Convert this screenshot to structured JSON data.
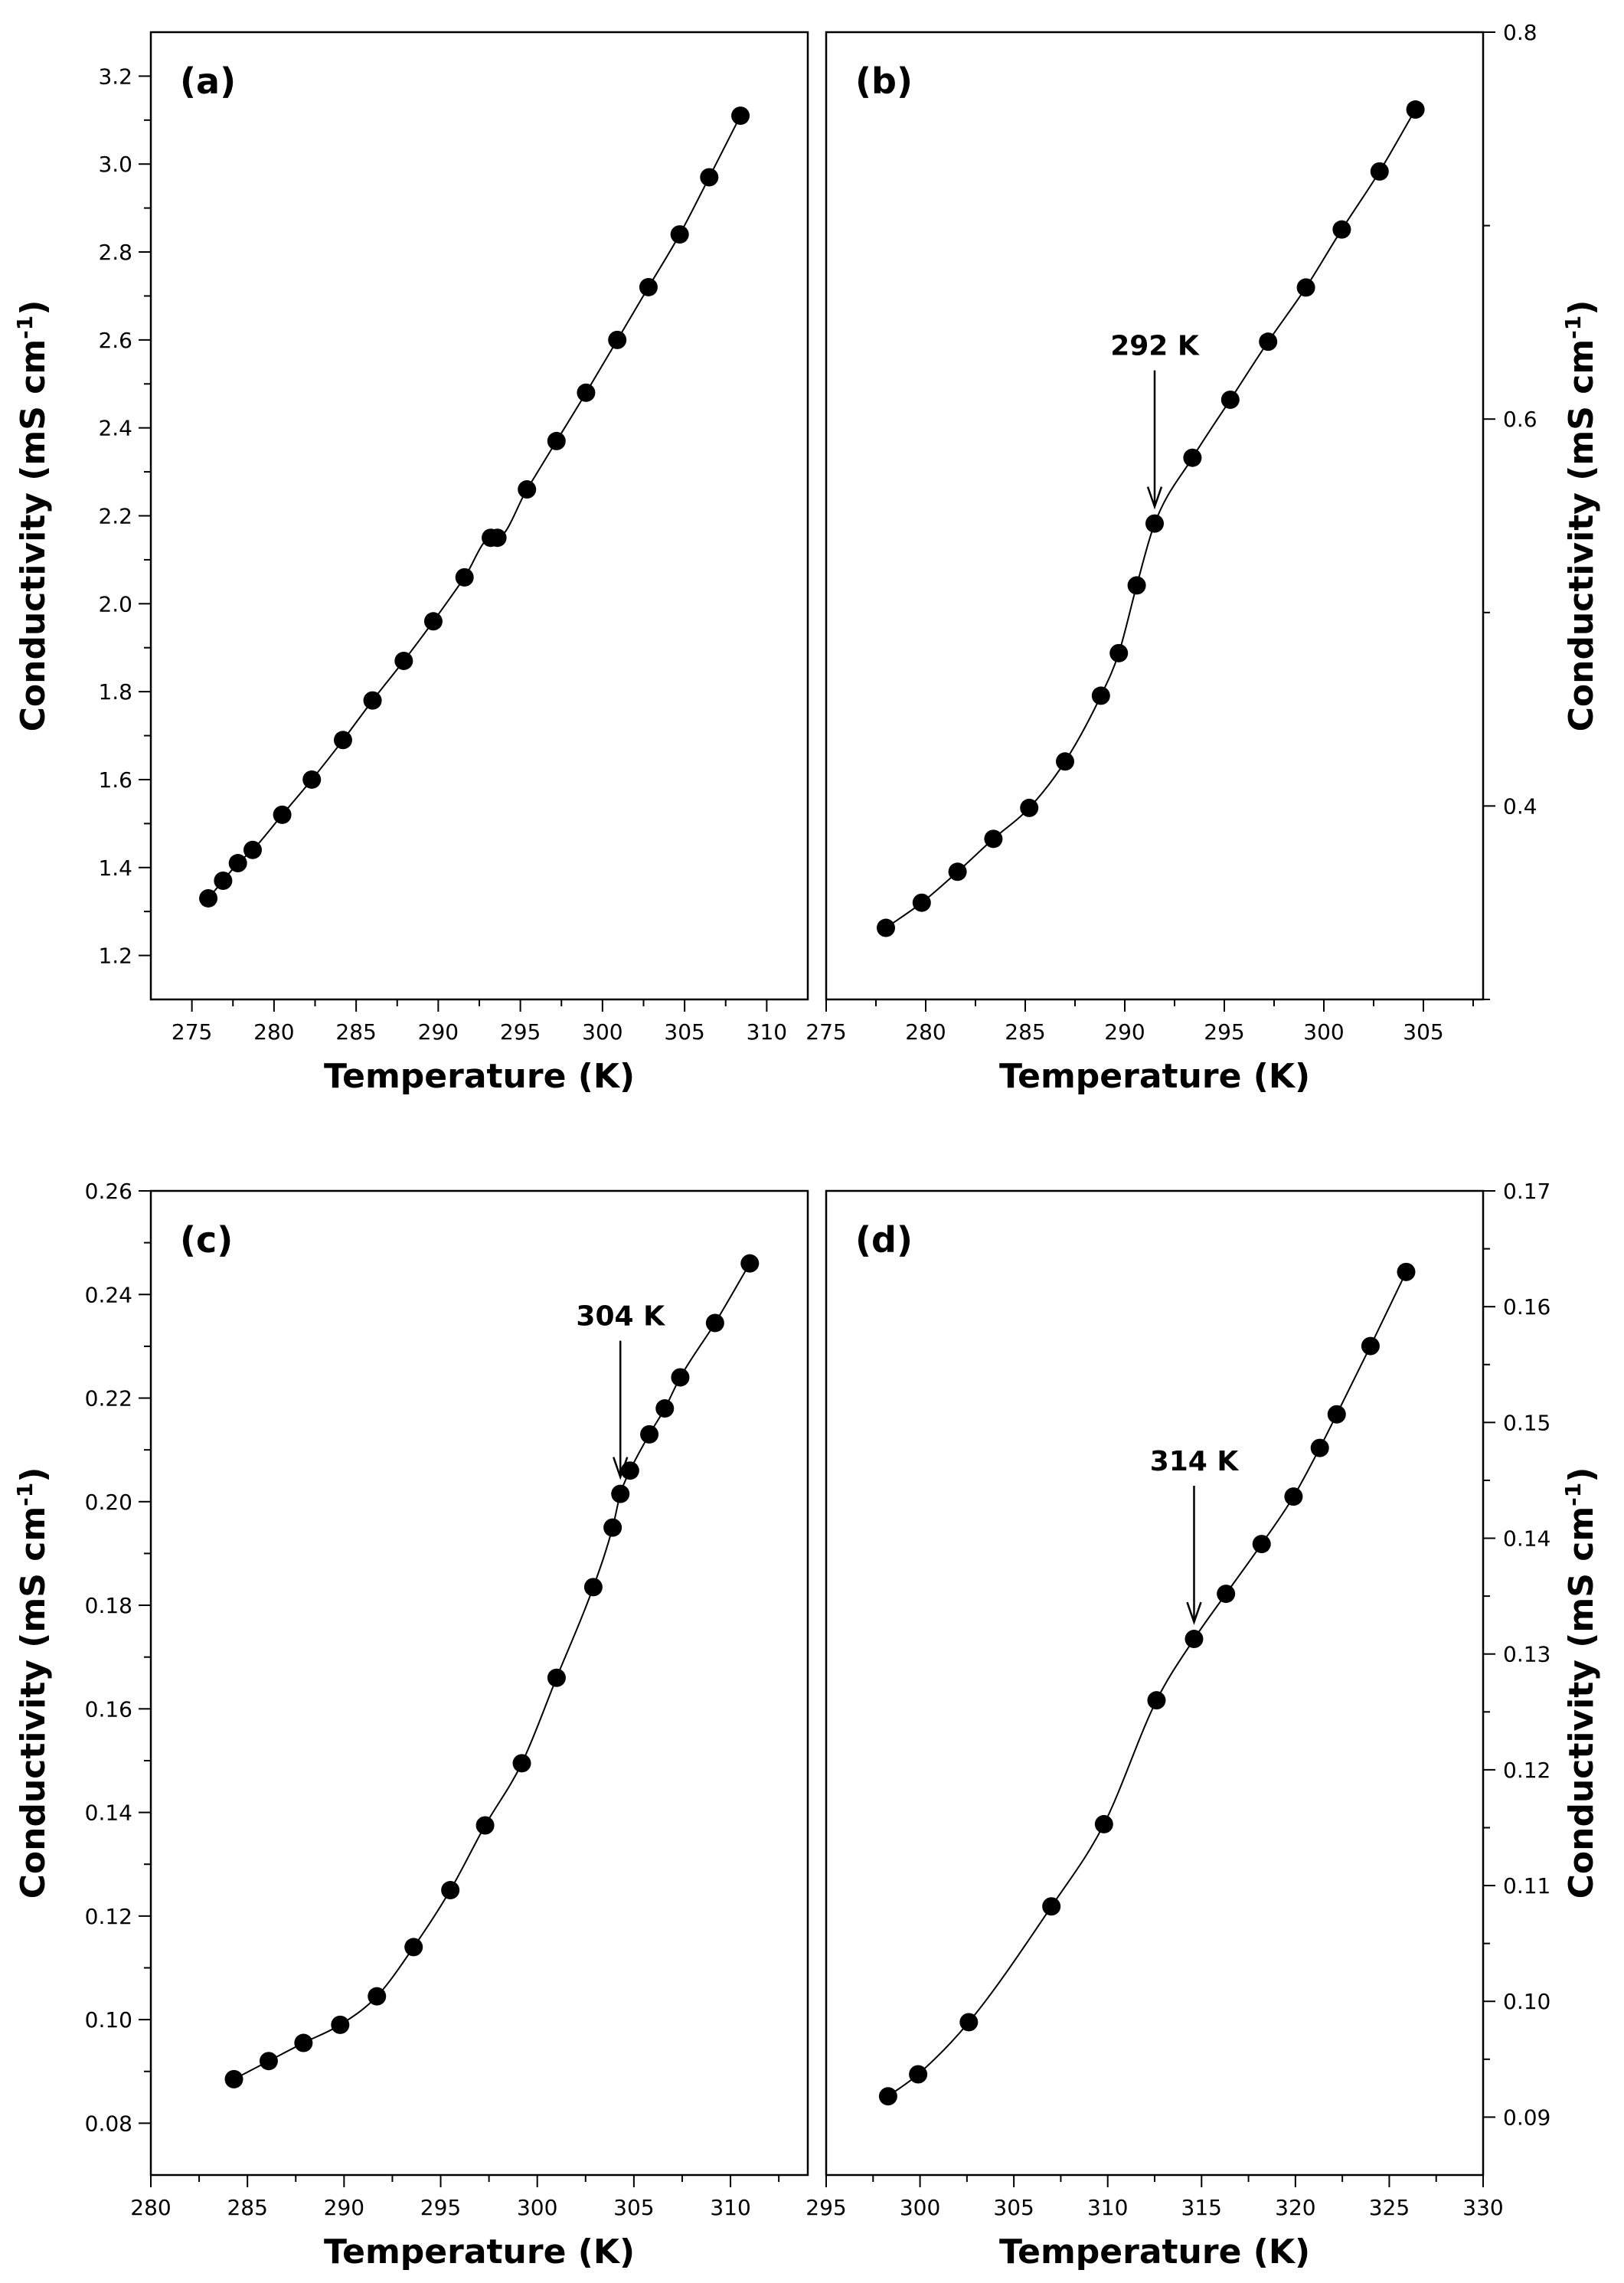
{
  "chart_data": [
    {
      "type": "line",
      "panel_label": "(a)",
      "xlabel": "Temperature (K)",
      "ylabel": "Conductivity (mS cm",
      "ylabel_sup": "-1",
      "ylabel_tail": ")",
      "ylabel_side": "left",
      "xlim": [
        272.5,
        312.5
      ],
      "ylim": [
        1.1,
        3.3
      ],
      "xticks": [
        275,
        280,
        285,
        290,
        295,
        300,
        305,
        310
      ],
      "xtick_labels": [
        "275",
        "280",
        "285",
        "290",
        "295",
        "300",
        "305",
        "310"
      ],
      "yticks": [
        1.2,
        1.4,
        1.6,
        1.8,
        2.0,
        2.2,
        2.4,
        2.6,
        2.8,
        3.0,
        3.2
      ],
      "ytick_labels": [
        "1.2",
        "1.4",
        "1.6",
        "1.8",
        "2.0",
        "2.2",
        "2.4",
        "2.6",
        "2.8",
        "3.0",
        "3.2"
      ],
      "x": [
        276.0,
        276.9,
        277.8,
        278.7,
        280.5,
        282.3,
        284.2,
        286.0,
        287.9,
        289.7,
        291.6,
        293.2,
        293.6,
        295.4,
        297.2,
        299.0,
        300.9,
        302.8,
        304.7,
        306.5,
        308.4
      ],
      "y": [
        1.33,
        1.37,
        1.41,
        1.44,
        1.52,
        1.6,
        1.69,
        1.78,
        1.87,
        1.96,
        2.06,
        2.15,
        2.15,
        2.26,
        2.37,
        2.48,
        2.6,
        2.72,
        2.84,
        2.97,
        3.11
      ],
      "annotation": null
    },
    {
      "type": "line",
      "panel_label": "(b)",
      "xlabel": "Temperature (K)",
      "ylabel": "Conductivity (mS cm",
      "ylabel_sup": "-1",
      "ylabel_tail": ")",
      "ylabel_side": "right",
      "xlim": [
        275,
        308
      ],
      "ylim": [
        0.3,
        0.8
      ],
      "xticks": [
        275,
        280,
        285,
        290,
        295,
        300,
        305
      ],
      "xtick_labels": [
        "275",
        "280",
        "285",
        "290",
        "295",
        "300",
        "305"
      ],
      "yticks": [
        0.4,
        0.6,
        0.8
      ],
      "ytick_labels": [
        "0.4",
        "0.6",
        "0.8"
      ],
      "x": [
        278.0,
        279.8,
        281.6,
        283.4,
        285.2,
        287.0,
        288.8,
        289.7,
        290.6,
        291.5,
        293.4,
        295.3,
        297.2,
        299.1,
        300.9,
        302.8,
        304.6
      ],
      "y": [
        0.337,
        0.35,
        0.366,
        0.383,
        0.399,
        0.423,
        0.457,
        0.479,
        0.514,
        0.546,
        0.58,
        0.61,
        0.64,
        0.668,
        0.698,
        0.728,
        0.76
      ],
      "annotation": {
        "label": "292 K",
        "x": 291.5,
        "y": 0.546
      }
    },
    {
      "type": "line",
      "panel_label": "(c)",
      "xlabel": "Temperature (K)",
      "ylabel": "Conductivity (mS cm",
      "ylabel_sup": "-1",
      "ylabel_tail": ")",
      "ylabel_side": "left",
      "xlim": [
        280,
        314
      ],
      "ylim": [
        0.07,
        0.26
      ],
      "xticks": [
        280,
        285,
        290,
        295,
        300,
        305,
        310
      ],
      "xtick_labels": [
        "280",
        "285",
        "290",
        "295",
        "300",
        "305",
        "310"
      ],
      "yticks": [
        0.08,
        0.1,
        0.12,
        0.14,
        0.16,
        0.18,
        0.2,
        0.22,
        0.24,
        0.26
      ],
      "ytick_labels": [
        "0.08",
        "0.10",
        "0.12",
        "0.14",
        "0.16",
        "0.18",
        "0.20",
        "0.22",
        "0.24",
        "0.26"
      ],
      "x": [
        284.3,
        286.1,
        287.9,
        289.8,
        291.7,
        293.6,
        295.5,
        297.3,
        299.2,
        301.0,
        302.9,
        303.9,
        304.3,
        304.8,
        305.8,
        306.6,
        307.4,
        309.2,
        311.0
      ],
      "y": [
        0.0885,
        0.092,
        0.0955,
        0.099,
        0.1045,
        0.114,
        0.125,
        0.1375,
        0.1495,
        0.166,
        0.1835,
        0.195,
        0.2015,
        0.206,
        0.213,
        0.218,
        0.224,
        0.2345,
        0.246
      ],
      "annotation": {
        "label": "304 K",
        "x": 304.3,
        "y": 0.2015
      }
    },
    {
      "type": "line",
      "panel_label": "(d)",
      "xlabel": "Temperature (K)",
      "ylabel": "Conductivity (mS cm",
      "ylabel_sup": "-1",
      "ylabel_tail": ")",
      "ylabel_side": "right",
      "xlim": [
        295,
        330
      ],
      "ylim": [
        0.085,
        0.17
      ],
      "xticks": [
        295,
        300,
        305,
        310,
        315,
        320,
        325,
        330
      ],
      "xtick_labels": [
        "295",
        "300",
        "305",
        "310",
        "315",
        "320",
        "325",
        "330"
      ],
      "yticks": [
        0.09,
        0.1,
        0.11,
        0.12,
        0.13,
        0.14,
        0.15,
        0.16,
        0.17
      ],
      "ytick_labels": [
        "0.09",
        "0.10",
        "0.11",
        "0.12",
        "0.13",
        "0.14",
        "0.15",
        "0.16",
        "0.17"
      ],
      "x": [
        298.3,
        299.9,
        302.6,
        307.0,
        309.8,
        312.6,
        314.6,
        316.3,
        318.2,
        319.9,
        321.3,
        322.2,
        324.0,
        325.9
      ],
      "y": [
        0.0918,
        0.0937,
        0.0982,
        0.1082,
        0.1153,
        0.126,
        0.1313,
        0.1352,
        0.1395,
        0.1436,
        0.1478,
        0.1507,
        0.1566,
        0.163
      ],
      "annotation": {
        "label": "314 K",
        "x": 314.6,
        "y": 0.1313
      }
    }
  ]
}
